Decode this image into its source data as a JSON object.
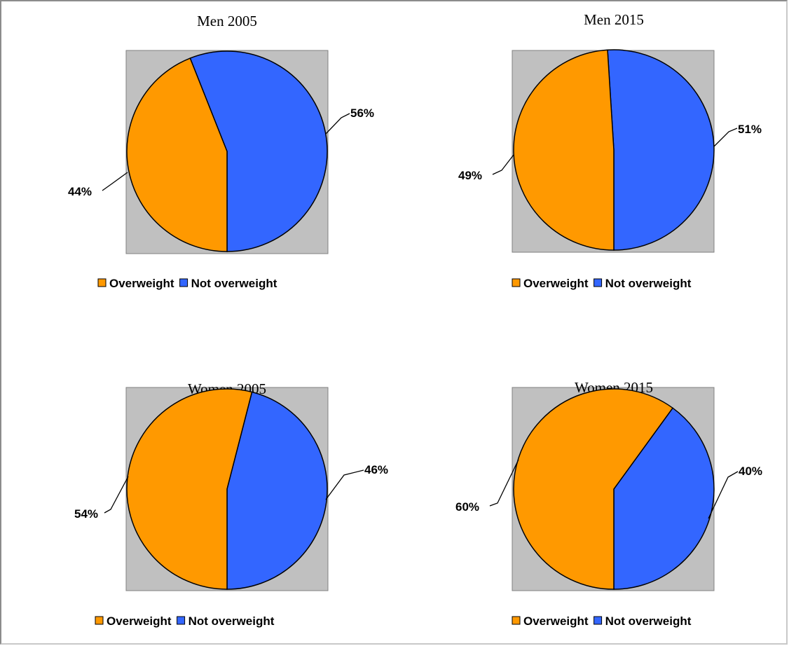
{
  "colors": {
    "overweight": "#ff9900",
    "not_overweight": "#3366ff",
    "plot_background": "#c0c0c0",
    "outline": "#000000"
  },
  "chart_data": [
    {
      "type": "pie",
      "title": "Men 2005",
      "categories": [
        "Overweight",
        "Not overweight"
      ],
      "values": [
        44,
        56
      ],
      "labels": [
        "44%",
        "56%"
      ],
      "legend": {
        "placement": "bottom",
        "entries": [
          "Overweight",
          "Not overweight"
        ]
      }
    },
    {
      "type": "pie",
      "title": "Men 2015",
      "categories": [
        "Overweight",
        "Not overweight"
      ],
      "values": [
        49,
        51
      ],
      "labels": [
        "49%",
        "51%"
      ],
      "legend": {
        "placement": "bottom",
        "entries": [
          "Overweight",
          "Not overweight"
        ]
      }
    },
    {
      "type": "pie",
      "title": "Women 2005",
      "categories": [
        "Overweight",
        "Not overweight"
      ],
      "values": [
        54,
        46
      ],
      "labels": [
        "54%",
        "46%"
      ],
      "legend": {
        "placement": "bottom",
        "entries": [
          "Overweight",
          "Not overweight"
        ]
      }
    },
    {
      "type": "pie",
      "title": "Women 2015",
      "categories": [
        "Overweight",
        "Not overweight"
      ],
      "values": [
        60,
        40
      ],
      "labels": [
        "60%",
        "40%"
      ],
      "legend": {
        "placement": "bottom",
        "entries": [
          "Overweight",
          "Not overweight"
        ]
      }
    }
  ]
}
